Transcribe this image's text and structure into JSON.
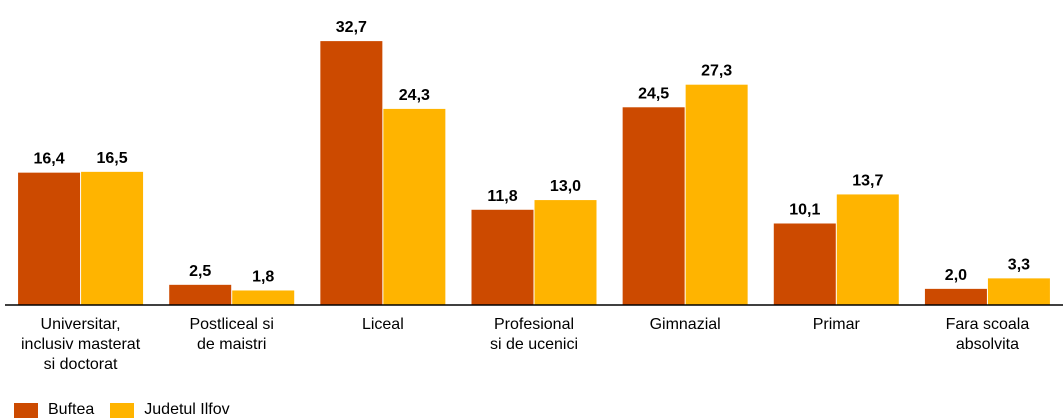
{
  "chart_data": {
    "type": "bar",
    "categories": [
      [
        "Universitar,",
        "inclusiv masterat",
        "si doctorat"
      ],
      [
        "Postliceal si",
        "de maistri"
      ],
      [
        "Liceal"
      ],
      [
        "Profesional",
        "si de ucenici"
      ],
      [
        "Gimnazial"
      ],
      [
        "Primar"
      ],
      [
        "Fara scoala",
        "absolvita"
      ]
    ],
    "series": [
      {
        "name": "Buftea",
        "color": "#CC4A00",
        "values": [
          16.4,
          2.5,
          32.7,
          11.8,
          24.5,
          10.1,
          2.0
        ],
        "labels": [
          "16,4",
          "2,5",
          "32,7",
          "11,8",
          "24,5",
          "10,1",
          "2,0"
        ]
      },
      {
        "name": "Judetul Ilfov",
        "color": "#FFB400",
        "values": [
          16.5,
          1.8,
          24.3,
          13.0,
          27.3,
          13.7,
          3.3
        ],
        "labels": [
          "16,5",
          "1,8",
          "24,3",
          "13,0",
          "27,3",
          "13,7",
          "3,3"
        ]
      }
    ],
    "ylim": [
      0,
      33
    ],
    "grid": false,
    "legend_position": "bottom-left"
  }
}
